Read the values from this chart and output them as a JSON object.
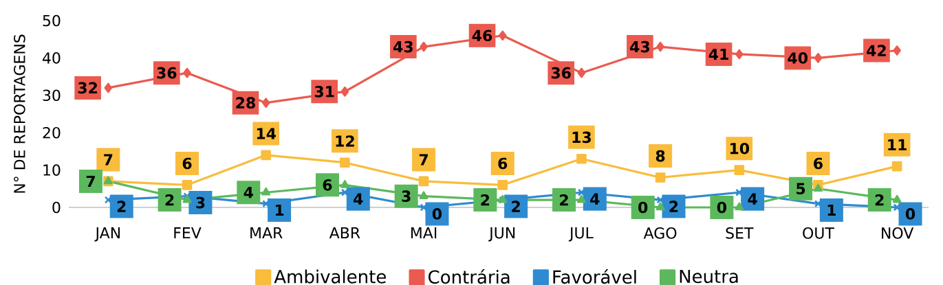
{
  "chart_data": {
    "type": "line",
    "ylabel": "N° DE REPORTAGENS",
    "categories": [
      "JAN",
      "FEV",
      "MAR",
      "ABR",
      "MAI",
      "JUN",
      "JUL",
      "AGO",
      "SET",
      "OUT",
      "NOV"
    ],
    "series": [
      {
        "name": "Ambivalente",
        "color": "#f9bc3c",
        "marker": "square",
        "values": [
          7,
          6,
          14,
          12,
          7,
          6,
          13,
          8,
          10,
          6,
          11
        ]
      },
      {
        "name": "Contrária",
        "color": "#ea5a4f",
        "marker": "diamond",
        "values": [
          32,
          36,
          28,
          31,
          43,
          46,
          36,
          43,
          41,
          40,
          42
        ]
      },
      {
        "name": "Favorável",
        "color": "#2e8bd0",
        "marker": "cross",
        "values": [
          2,
          3,
          1,
          4,
          0,
          2,
          4,
          2,
          4,
          1,
          0
        ]
      },
      {
        "name": "Neutra",
        "color": "#5cb85c",
        "marker": "triangle",
        "values": [
          7,
          2,
          4,
          6,
          3,
          2,
          2,
          0,
          0,
          5,
          2
        ]
      }
    ],
    "ylim": [
      0,
      50
    ],
    "yticks": [
      0,
      10,
      20,
      30,
      40,
      50
    ],
    "data_labels": true,
    "legend": "bottom",
    "grid": false
  }
}
